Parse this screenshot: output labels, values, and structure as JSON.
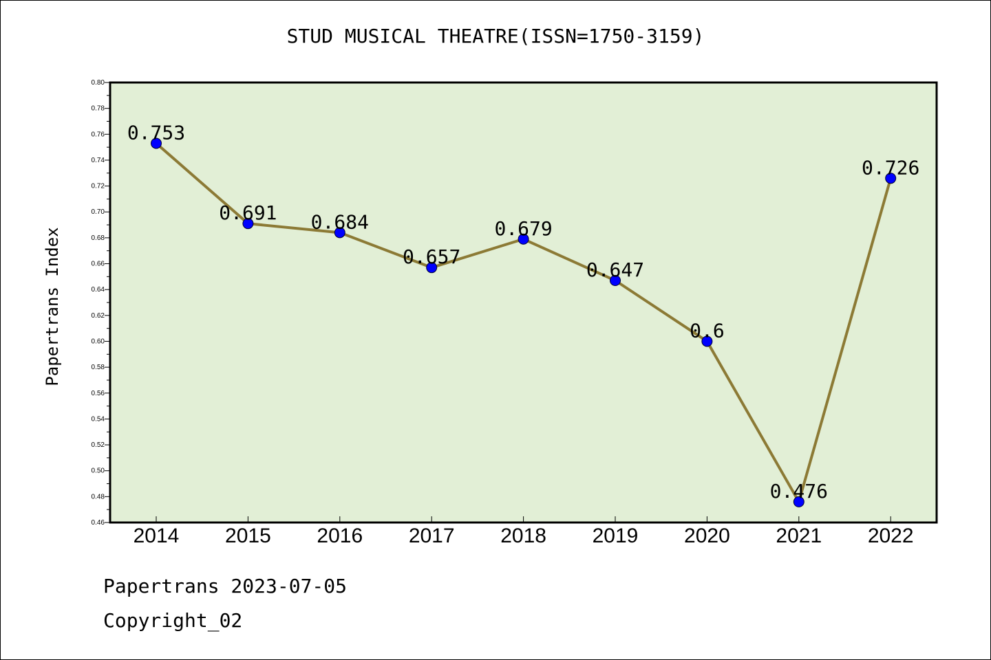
{
  "title": "STUD MUSICAL THEATRE(ISSN=1750-3159)",
  "footer": {
    "source_date": "Papertrans 2023-07-05",
    "copyright": "Copyright_02"
  },
  "colors": {
    "plot_background": "#e2efd6",
    "line": "#8c7a35",
    "marker": "#0000ff",
    "axis": "#000000"
  },
  "chart_data": {
    "type": "line",
    "title": "STUD MUSICAL THEATRE(ISSN=1750-3159)",
    "xlabel": "",
    "ylabel": "Papertrans Index",
    "categories": [
      "2014",
      "2015",
      "2016",
      "2017",
      "2018",
      "2019",
      "2020",
      "2021",
      "2022"
    ],
    "series": [
      {
        "values": [
          0.753,
          0.691,
          0.684,
          0.657,
          0.679,
          0.647,
          0.6,
          0.476,
          0.726
        ],
        "labels": [
          "0.753",
          "0.691",
          "0.684",
          "0.657",
          "0.679",
          "0.647",
          "0.6",
          "0.476",
          "0.726"
        ]
      }
    ],
    "ylim": [
      0.46,
      0.8
    ],
    "yticks": [
      "0.46",
      "0.48",
      "0.50",
      "0.52",
      "0.54",
      "0.56",
      "0.58",
      "0.60",
      "0.62",
      "0.64",
      "0.66",
      "0.68",
      "0.70",
      "0.72",
      "0.74",
      "0.76",
      "0.78",
      "0.80"
    ],
    "grid": false,
    "legend": "none"
  }
}
